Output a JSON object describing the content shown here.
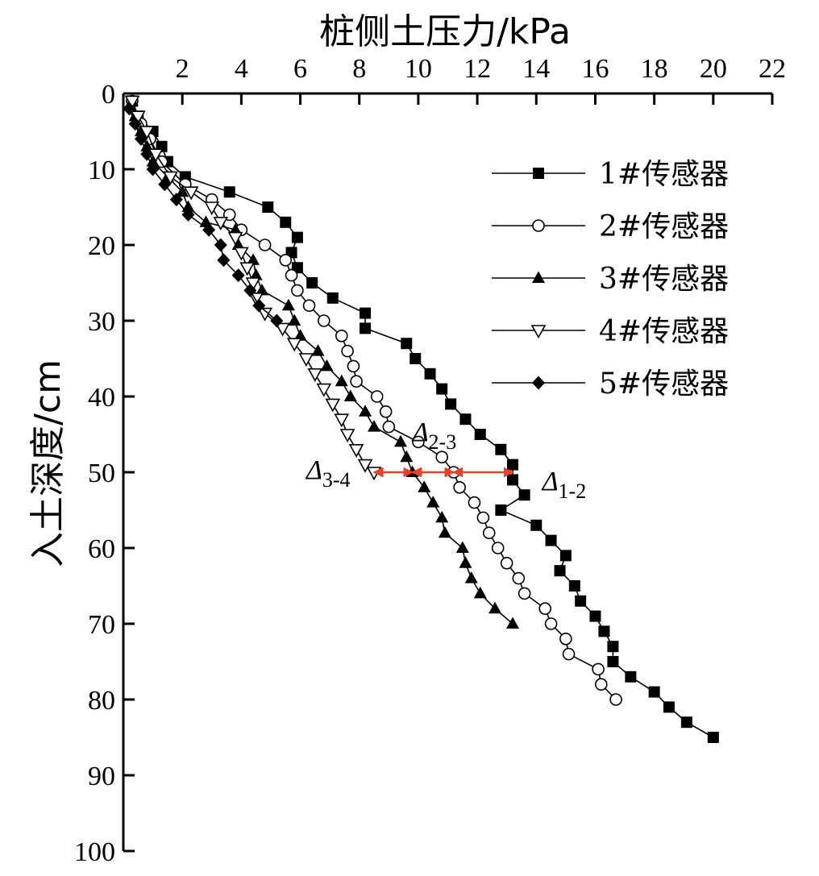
{
  "chart_data": {
    "type": "line",
    "title": "",
    "xlabel": "桩侧土压力/kPa",
    "ylabel": "入土深度/cm",
    "xlim": [
      0,
      22
    ],
    "ylim": [
      0,
      100
    ],
    "y_inverted": true,
    "x_axis_position": "top",
    "xticks": [
      2,
      4,
      6,
      8,
      10,
      12,
      14,
      16,
      18,
      20,
      22
    ],
    "xtick_labels": [
      "2",
      "4",
      "6",
      "8",
      "10",
      "12",
      "14",
      "16",
      "18",
      "20",
      "22"
    ],
    "yticks": [
      0,
      10,
      20,
      30,
      40,
      50,
      60,
      70,
      80,
      90,
      100
    ],
    "ytick_labels": [
      "0",
      "10",
      "20",
      "30",
      "40",
      "50",
      "60",
      "70",
      "80",
      "90",
      "100"
    ],
    "grid": false,
    "legend_position": "top-right",
    "series": [
      {
        "name": "1#传感器",
        "marker": "square-filled",
        "points": [
          [
            0.3,
            1
          ],
          [
            0.5,
            3
          ],
          [
            1.0,
            5
          ],
          [
            1.3,
            7
          ],
          [
            1.5,
            9
          ],
          [
            2.1,
            11
          ],
          [
            3.6,
            13
          ],
          [
            4.9,
            15
          ],
          [
            5.5,
            17
          ],
          [
            5.9,
            19
          ],
          [
            5.7,
            21
          ],
          [
            5.9,
            23
          ],
          [
            6.4,
            25
          ],
          [
            7.1,
            27
          ],
          [
            8.2,
            29
          ],
          [
            8.2,
            31
          ],
          [
            9.6,
            33
          ],
          [
            9.9,
            35
          ],
          [
            10.4,
            37
          ],
          [
            10.8,
            39
          ],
          [
            11.1,
            41
          ],
          [
            11.6,
            43
          ],
          [
            12.1,
            45
          ],
          [
            12.8,
            47
          ],
          [
            13.2,
            49
          ],
          [
            13.2,
            51
          ],
          [
            13.6,
            53
          ],
          [
            12.8,
            55
          ],
          [
            14.0,
            57
          ],
          [
            14.5,
            59
          ],
          [
            15.0,
            61
          ],
          [
            14.8,
            63
          ],
          [
            15.3,
            65
          ],
          [
            15.5,
            67
          ],
          [
            16.0,
            69
          ],
          [
            16.3,
            71
          ],
          [
            16.6,
            73
          ],
          [
            16.6,
            75
          ],
          [
            17.2,
            77
          ],
          [
            18.0,
            79
          ],
          [
            18.5,
            81
          ],
          [
            19.1,
            83
          ],
          [
            20.0,
            85
          ]
        ]
      },
      {
        "name": "2#传感器",
        "marker": "circle-open",
        "points": [
          [
            0.3,
            1
          ],
          [
            0.6,
            4
          ],
          [
            0.9,
            6
          ],
          [
            1.3,
            9
          ],
          [
            2.1,
            12
          ],
          [
            3.0,
            14
          ],
          [
            3.6,
            16
          ],
          [
            4.0,
            18
          ],
          [
            4.8,
            20
          ],
          [
            5.5,
            22
          ],
          [
            5.7,
            24
          ],
          [
            5.9,
            26
          ],
          [
            6.3,
            28
          ],
          [
            6.8,
            30
          ],
          [
            7.4,
            32
          ],
          [
            7.6,
            34
          ],
          [
            7.8,
            36
          ],
          [
            7.9,
            38
          ],
          [
            8.6,
            40
          ],
          [
            8.9,
            42
          ],
          [
            9.0,
            44
          ],
          [
            10.0,
            46
          ],
          [
            10.8,
            48
          ],
          [
            11.2,
            50
          ],
          [
            11.4,
            52
          ],
          [
            11.9,
            54
          ],
          [
            12.2,
            56
          ],
          [
            12.4,
            58
          ],
          [
            12.7,
            60
          ],
          [
            13.0,
            62
          ],
          [
            13.4,
            64
          ],
          [
            13.6,
            66
          ],
          [
            14.3,
            68
          ],
          [
            14.5,
            70
          ],
          [
            15.0,
            72
          ],
          [
            15.1,
            74
          ],
          [
            16.1,
            76
          ],
          [
            16.2,
            78
          ],
          [
            16.7,
            80
          ]
        ]
      },
      {
        "name": "3#传感器",
        "marker": "triangle-up-filled",
        "points": [
          [
            0.3,
            1
          ],
          [
            0.4,
            3
          ],
          [
            0.6,
            5
          ],
          [
            0.8,
            7
          ],
          [
            1.0,
            9
          ],
          [
            1.5,
            11
          ],
          [
            2.0,
            13
          ],
          [
            2.2,
            15
          ],
          [
            2.8,
            17
          ],
          [
            3.8,
            18
          ],
          [
            3.9,
            20
          ],
          [
            4.4,
            22
          ],
          [
            4.5,
            24
          ],
          [
            4.7,
            26
          ],
          [
            5.6,
            28
          ],
          [
            5.8,
            30
          ],
          [
            6.0,
            32
          ],
          [
            6.6,
            34
          ],
          [
            6.9,
            36
          ],
          [
            7.4,
            38
          ],
          [
            7.7,
            40
          ],
          [
            8.2,
            42
          ],
          [
            8.5,
            44
          ],
          [
            9.4,
            46
          ],
          [
            9.6,
            48
          ],
          [
            9.8,
            50
          ],
          [
            10.2,
            52
          ],
          [
            10.5,
            54
          ],
          [
            10.8,
            56
          ],
          [
            10.9,
            58
          ],
          [
            11.5,
            60
          ],
          [
            11.6,
            62
          ],
          [
            11.8,
            64
          ],
          [
            12.1,
            66
          ],
          [
            12.6,
            68
          ],
          [
            13.2,
            70
          ]
        ]
      },
      {
        "name": "4#传感器",
        "marker": "triangle-down-open",
        "points": [
          [
            0.3,
            1
          ],
          [
            0.5,
            3
          ],
          [
            0.8,
            5
          ],
          [
            1.1,
            8
          ],
          [
            1.6,
            11
          ],
          [
            2.3,
            13
          ],
          [
            3.0,
            15
          ],
          [
            3.3,
            17
          ],
          [
            3.8,
            19
          ],
          [
            4.0,
            21
          ],
          [
            4.2,
            23
          ],
          [
            4.4,
            25
          ],
          [
            4.5,
            27
          ],
          [
            4.8,
            29
          ],
          [
            5.4,
            31
          ],
          [
            5.8,
            33
          ],
          [
            6.2,
            35
          ],
          [
            6.5,
            37
          ],
          [
            6.8,
            39
          ],
          [
            7.1,
            41
          ],
          [
            7.4,
            43
          ],
          [
            7.6,
            45
          ],
          [
            7.9,
            47
          ],
          [
            8.2,
            49
          ],
          [
            8.5,
            50
          ]
        ]
      },
      {
        "name": "5#传感器",
        "marker": "diamond-filled",
        "points": [
          [
            0.2,
            2
          ],
          [
            0.4,
            4
          ],
          [
            0.6,
            6
          ],
          [
            0.8,
            8
          ],
          [
            1.0,
            10
          ],
          [
            1.4,
            12
          ],
          [
            1.8,
            14
          ],
          [
            2.2,
            16
          ],
          [
            2.9,
            18
          ],
          [
            3.3,
            20
          ],
          [
            3.4,
            22
          ],
          [
            3.9,
            24
          ],
          [
            4.3,
            26
          ],
          [
            4.6,
            28
          ],
          [
            5.2,
            30
          ]
        ]
      }
    ],
    "annotations": [
      {
        "type": "double-arrow",
        "color": "#e8402a",
        "y": 50,
        "x_from": 8.5,
        "x_to": 9.8
      },
      {
        "type": "double-arrow",
        "color": "#e8402a",
        "y": 50,
        "x_from": 9.8,
        "x_to": 11.2
      },
      {
        "type": "double-arrow",
        "color": "#e8402a",
        "y": 50,
        "x_from": 11.2,
        "x_to": 13.2
      },
      {
        "type": "label",
        "symbol": "Δ",
        "subscript": "3-4",
        "x": 6.2,
        "y": 50
      },
      {
        "type": "label",
        "symbol": "Δ",
        "subscript": "2-3",
        "x": 9.8,
        "y": 45
      },
      {
        "type": "label",
        "symbol": "Δ",
        "subscript": "1-2",
        "x": 14.2,
        "y": 51.5
      }
    ]
  }
}
